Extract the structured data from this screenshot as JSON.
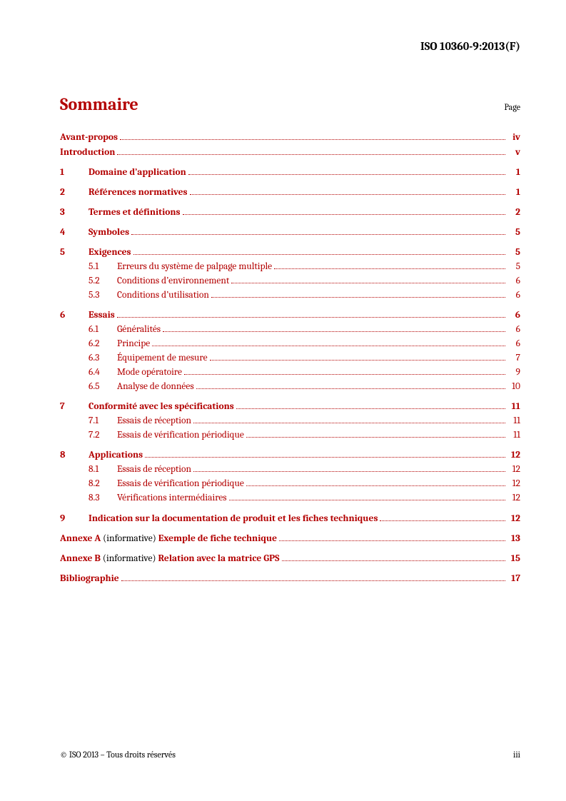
{
  "header": {
    "doc_id": "ISO 10360-9:2013(F)"
  },
  "title": {
    "heading": "Sommaire",
    "page_label": "Page"
  },
  "colors": {
    "accent": "#b30000",
    "text": "#000000",
    "background": "#ffffff"
  },
  "typography": {
    "base_family": "Cambria, Georgia, serif",
    "title_size_pt": 18,
    "body_size_pt": 10,
    "header_size_pt": 12
  },
  "toc": {
    "front": [
      {
        "label": "Avant-propos",
        "page": "iv"
      },
      {
        "label": "Introduction",
        "page": "v"
      }
    ],
    "sections": [
      {
        "num": "1",
        "label": "Domaine d’application",
        "page": "1",
        "subs": []
      },
      {
        "num": "2",
        "label": "Références normatives",
        "page": "1",
        "subs": []
      },
      {
        "num": "3",
        "label": "Termes et définitions",
        "page": "2",
        "subs": []
      },
      {
        "num": "4",
        "label": "Symboles",
        "page": "5",
        "subs": []
      },
      {
        "num": "5",
        "label": "Exigences",
        "page": "5",
        "subs": [
          {
            "num": "5.1",
            "label": "Erreurs du système de palpage multiple",
            "page": "5"
          },
          {
            "num": "5.2",
            "label": "Conditions d’environnement",
            "page": "6"
          },
          {
            "num": "5.3",
            "label": "Conditions d’utilisation",
            "page": "6"
          }
        ]
      },
      {
        "num": "6",
        "label": "Essais",
        "page": "6",
        "subs": [
          {
            "num": "6.1",
            "label": "Généralités",
            "page": "6"
          },
          {
            "num": "6.2",
            "label": "Principe",
            "page": "6"
          },
          {
            "num": "6.3",
            "label": "Équipement de mesure",
            "page": "7"
          },
          {
            "num": "6.4",
            "label": "Mode opératoire",
            "page": "9"
          },
          {
            "num": "6.5",
            "label": "Analyse de données",
            "page": "10"
          }
        ]
      },
      {
        "num": "7",
        "label": "Conformité avec les spécifications",
        "page": "11",
        "subs": [
          {
            "num": "7.1",
            "label": "Essais de réception",
            "page": "11"
          },
          {
            "num": "7.2",
            "label": "Essais de vérification périodique",
            "page": "11"
          }
        ]
      },
      {
        "num": "8",
        "label": "Applications",
        "page": "12",
        "subs": [
          {
            "num": "8.1",
            "label": "Essais de réception",
            "page": "12"
          },
          {
            "num": "8.2",
            "label": "Essais de vérification périodique",
            "page": "12"
          },
          {
            "num": "8.3",
            "label": "Vérifications intermédiaires",
            "page": "12"
          }
        ]
      },
      {
        "num": "9",
        "label": "Indication sur la documentation de produit et les fiches techniques",
        "page": "12",
        "subs": []
      }
    ],
    "annexes": [
      {
        "prefix": "Annexe A",
        "paren": " (informative) ",
        "label": "Exemple de fiche technique",
        "page": "13"
      },
      {
        "prefix": "Annexe B",
        "paren": " (informative) ",
        "label": "Relation avec la matrice GPS",
        "page": "15"
      }
    ],
    "biblio": {
      "label": "Bibliographie",
      "page": "17"
    }
  },
  "footer": {
    "copyright": "© ISO 2013 – Tous droits réservés",
    "page_num": "iii"
  }
}
